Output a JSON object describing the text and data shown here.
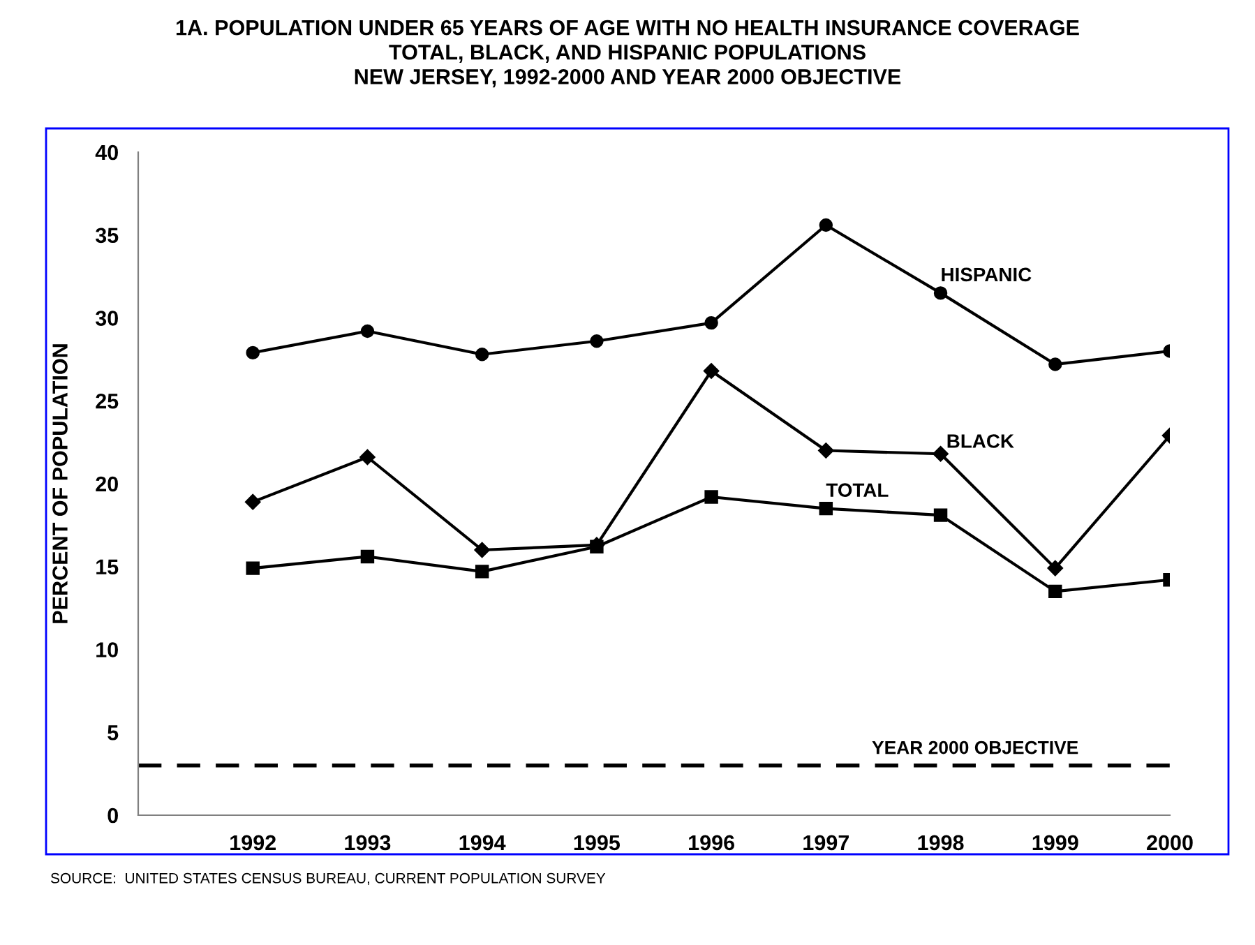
{
  "chart_data": {
    "type": "line",
    "title": "1A. POPULATION UNDER 65 YEARS OF AGE WITH NO HEALTH INSURANCE COVERAGE\nTOTAL, BLACK, AND HISPANIC POPULATIONS\nNEW JERSEY, 1992-2000 AND YEAR 2000 OBJECTIVE",
    "ylabel": "PERCENT OF POPULATION",
    "categories": [
      "1992",
      "1993",
      "1994",
      "1995",
      "1996",
      "1997",
      "1998",
      "1999",
      "2000"
    ],
    "series": [
      {
        "name": "HISPANIC",
        "color": "#000000",
        "marker": "circle",
        "values": [
          27.9,
          29.2,
          27.8,
          28.6,
          29.7,
          35.6,
          31.5,
          27.2,
          28.0
        ]
      },
      {
        "name": "BLACK",
        "color": "#000000",
        "marker": "diamond",
        "values": [
          18.9,
          21.6,
          16.0,
          16.3,
          26.8,
          22.0,
          21.8,
          14.9,
          22.9
        ]
      },
      {
        "name": "TOTAL",
        "color": "#000000",
        "marker": "square",
        "values": [
          14.9,
          15.6,
          14.7,
          16.2,
          19.2,
          18.5,
          18.1,
          13.5,
          14.2
        ]
      }
    ],
    "ylim": [
      0,
      40
    ],
    "yticks": [
      0,
      5,
      10,
      15,
      20,
      25,
      30,
      35,
      40
    ],
    "grid": false,
    "legend": false,
    "line_style": "solid",
    "ref_lines": [
      {
        "axis": "y",
        "value": 3,
        "label": "YEAR 2000 OBJECTIVE",
        "color": "#000000",
        "line_style": "dashed"
      }
    ],
    "annotations": [
      "SOURCE:  UNITED STATES CENSUS BUREAU, CURRENT POPULATION SURVEY"
    ]
  }
}
